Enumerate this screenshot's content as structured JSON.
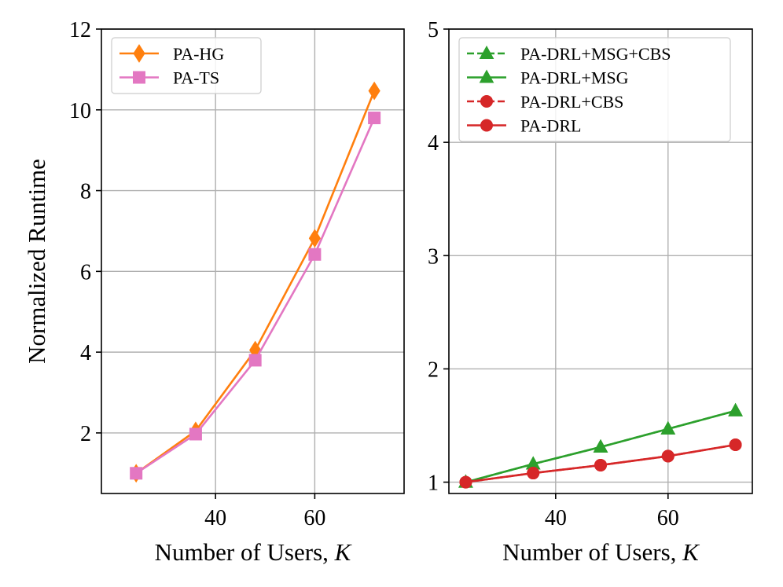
{
  "chart_data": [
    {
      "type": "line",
      "x": [
        24,
        36,
        48,
        60,
        72
      ],
      "xlim": [
        17,
        78
      ],
      "ylim": [
        0.5,
        12
      ],
      "xticks": [
        40,
        60
      ],
      "yticks": [
        2,
        4,
        6,
        8,
        10,
        12
      ],
      "xticklabels": [
        "40",
        "60"
      ],
      "yticklabels": [
        "2",
        "4",
        "6",
        "8",
        "10",
        "12"
      ],
      "xlabel_prefix": "Number of Users, ",
      "xlabel_var": "K",
      "ylabel": "Normalized Runtime",
      "grid": true,
      "legend": "top-left",
      "series": [
        {
          "name": "PA-HG",
          "values": [
            1.0,
            2.05,
            4.05,
            6.82,
            10.47
          ],
          "color": "#ff7f0e",
          "marker": "diamond",
          "linestyle": "solid"
        },
        {
          "name": "PA-TS",
          "values": [
            1.0,
            1.97,
            3.8,
            6.42,
            9.8
          ],
          "color": "#e377c2",
          "marker": "square",
          "linestyle": "solid"
        }
      ]
    },
    {
      "type": "line",
      "x": [
        24,
        36,
        48,
        60,
        72
      ],
      "xlim": [
        21,
        75
      ],
      "ylim": [
        0.9,
        5
      ],
      "xticks": [
        40,
        60
      ],
      "yticks": [
        1,
        2,
        3,
        4,
        5
      ],
      "xticklabels": [
        "40",
        "60"
      ],
      "yticklabels": [
        "1",
        "2",
        "3",
        "4",
        "5"
      ],
      "xlabel_prefix": "Number of Users, ",
      "xlabel_var": "K",
      "ylabel": "",
      "grid": true,
      "legend": "top-left",
      "series": [
        {
          "name": "PA-DRL+MSG+CBS",
          "values": [
            1.0,
            1.16,
            1.31,
            1.47,
            1.63
          ],
          "color": "#2ca02c",
          "marker": "triangle",
          "linestyle": "dashed"
        },
        {
          "name": "PA-DRL+MSG",
          "values": [
            1.0,
            1.16,
            1.31,
            1.47,
            1.63
          ],
          "color": "#2ca02c",
          "marker": "triangle",
          "linestyle": "solid"
        },
        {
          "name": "PA-DRL+CBS",
          "values": [
            1.0,
            1.08,
            1.15,
            1.23,
            1.33
          ],
          "color": "#d62728",
          "marker": "circle",
          "linestyle": "dashed"
        },
        {
          "name": "PA-DRL",
          "values": [
            1.0,
            1.08,
            1.15,
            1.23,
            1.33
          ],
          "color": "#d62728",
          "marker": "circle",
          "linestyle": "solid"
        }
      ]
    }
  ]
}
